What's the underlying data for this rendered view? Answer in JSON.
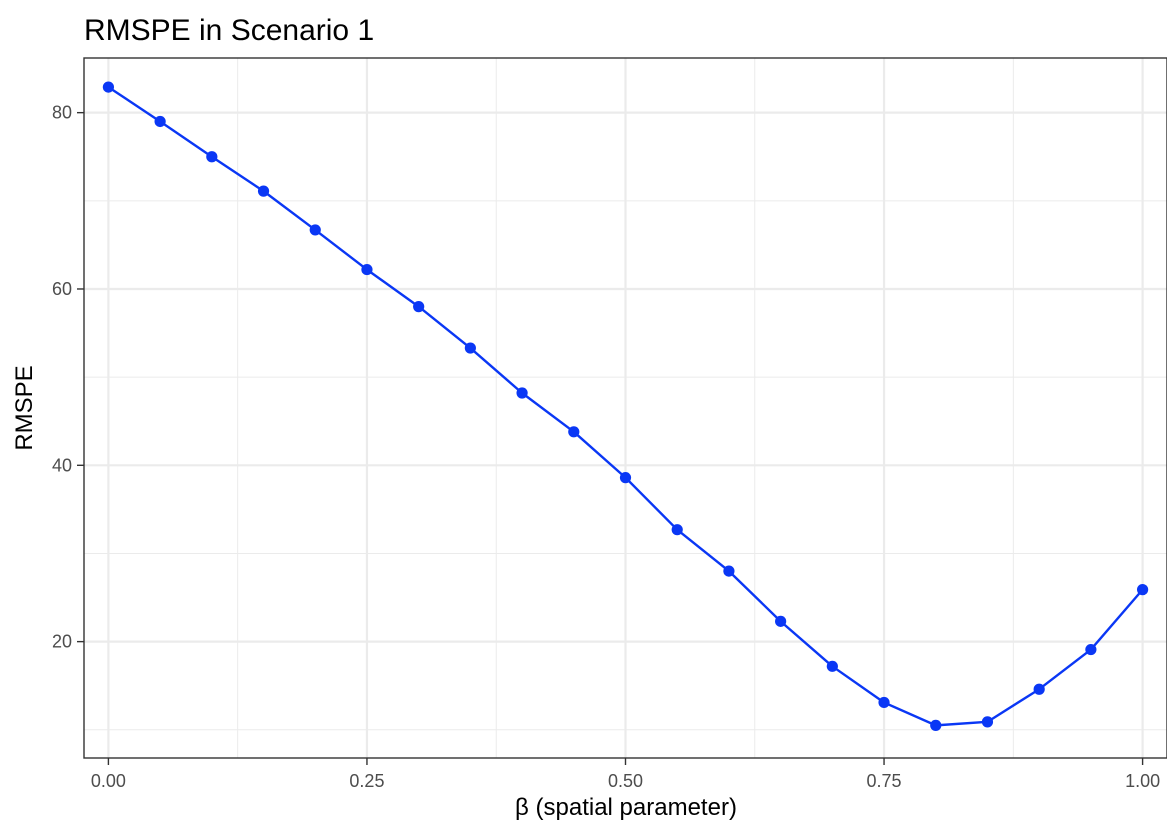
{
  "chart_data": {
    "type": "line",
    "title": "RMSPE in Scenario 1",
    "xlabel": "β (spatial parameter)",
    "ylabel": "RMSPE",
    "xlim": [
      -0.0236,
      1.0236
    ],
    "ylim": [
      6.8,
      86.2
    ],
    "x_ticks": [
      0.0,
      0.25,
      0.5,
      0.75,
      1.0
    ],
    "x_tick_labels": [
      "0.00",
      "0.25",
      "0.50",
      "0.75",
      "1.00"
    ],
    "x_minor_ticks": [
      0.125,
      0.375,
      0.625,
      0.875
    ],
    "y_ticks": [
      20,
      40,
      60,
      80
    ],
    "y_tick_labels": [
      "20",
      "40",
      "60",
      "80"
    ],
    "y_minor_ticks": [
      10,
      30,
      50,
      70
    ],
    "grid": true,
    "series_color": "#0a37f5",
    "series": [
      {
        "x": [
          0.0,
          0.05,
          0.1,
          0.15,
          0.2,
          0.25,
          0.3,
          0.35,
          0.4,
          0.45,
          0.5,
          0.55,
          0.6,
          0.65,
          0.7,
          0.75,
          0.8,
          0.85,
          0.9,
          0.95,
          1.0
        ],
        "y": [
          82.9,
          79.0,
          75.0,
          71.1,
          66.7,
          62.2,
          58.0,
          53.3,
          48.2,
          43.8,
          38.6,
          32.7,
          28.0,
          22.3,
          17.2,
          13.1,
          10.5,
          10.9,
          14.6,
          19.1,
          25.9
        ]
      }
    ]
  }
}
